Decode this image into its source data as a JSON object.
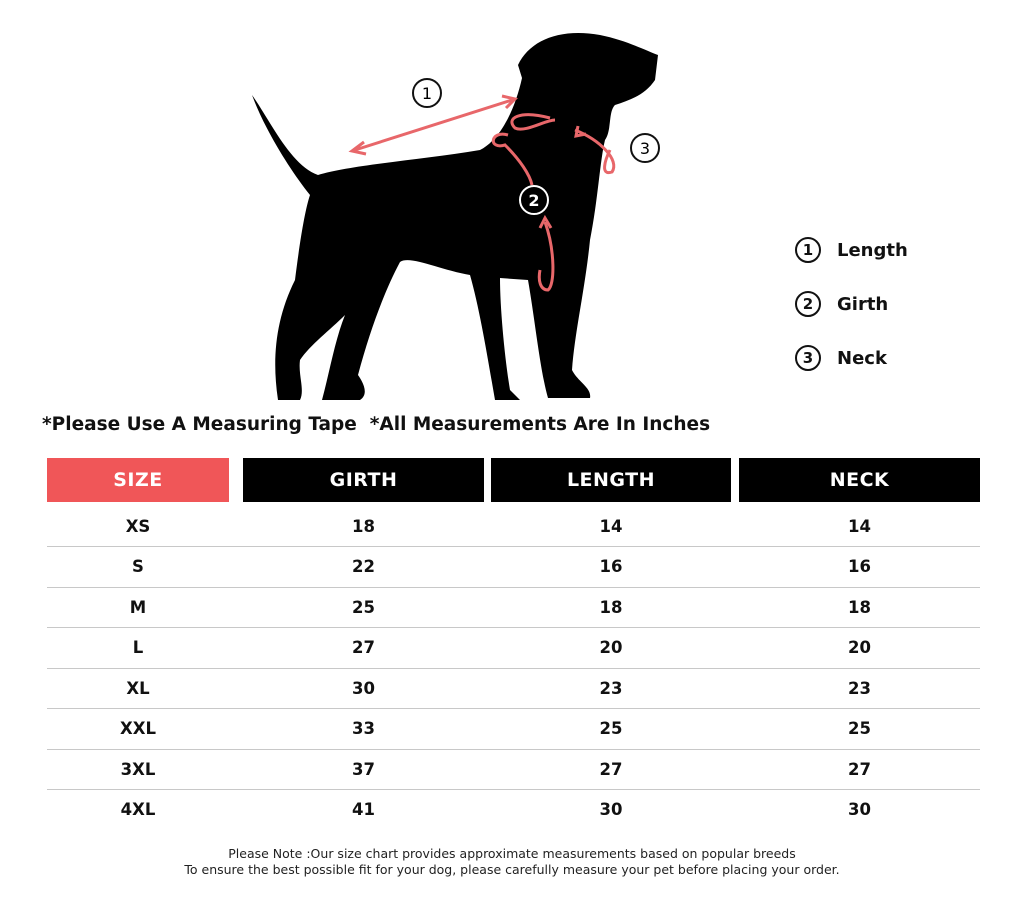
{
  "colors": {
    "accent": "#f05658",
    "header": "#000000",
    "measure_line": "#e8676a"
  },
  "diagram": {
    "markers": [
      "1",
      "2",
      "3"
    ]
  },
  "legend": [
    {
      "num": "1",
      "label": "Length"
    },
    {
      "num": "2",
      "label": "Girth"
    },
    {
      "num": "3",
      "label": "Neck"
    }
  ],
  "notes": {
    "tape": "*Please Use A Measuring Tape",
    "units": "*All Measurements Are In Inches"
  },
  "table": {
    "headers": [
      "SIZE",
      "GIRTH",
      "LENGTH",
      "NECK"
    ],
    "rows": [
      [
        "XS",
        "18",
        "14",
        "14"
      ],
      [
        "S",
        "22",
        "16",
        "16"
      ],
      [
        "M",
        "25",
        "18",
        "18"
      ],
      [
        "L",
        "27",
        "20",
        "20"
      ],
      [
        "XL",
        "30",
        "23",
        "23"
      ],
      [
        "XXL",
        "33",
        "25",
        "25"
      ],
      [
        "3XL",
        "37",
        "27",
        "27"
      ],
      [
        "4XL",
        "41",
        "30",
        "30"
      ]
    ]
  },
  "footer": {
    "line1": "Please Note :Our size chart provides approximate measurements based on popular breeds",
    "line2": "To ensure the best possible fit for your dog, please carefully measure your pet before placing your order."
  }
}
